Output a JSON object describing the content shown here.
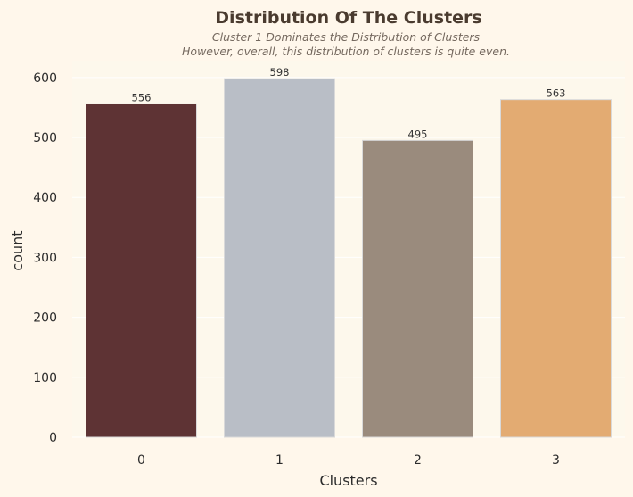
{
  "chart_data": {
    "type": "bar",
    "title": "Distribution Of The Clusters",
    "subtitle_lines": [
      "Cluster 1 Dominates the Distribution of Clusters",
      "However, overall, this distribution of clusters is quite even."
    ],
    "xlabel": "Clusters",
    "ylabel": "count",
    "categories": [
      "0",
      "1",
      "2",
      "3"
    ],
    "values": [
      556,
      598,
      495,
      563
    ],
    "data_labels": [
      "556",
      "598",
      "495",
      "563"
    ],
    "bar_colors": [
      "#5e3334",
      "#b9bec6",
      "#9a8b7d",
      "#e3ab72"
    ],
    "ylim": [
      0,
      628
    ],
    "yticks": [
      0,
      100,
      200,
      300,
      400,
      500,
      600
    ],
    "grid": true,
    "plot_background": "#fdf8ec",
    "page_background": "#fff7eb",
    "grid_color": "#ffffff"
  }
}
